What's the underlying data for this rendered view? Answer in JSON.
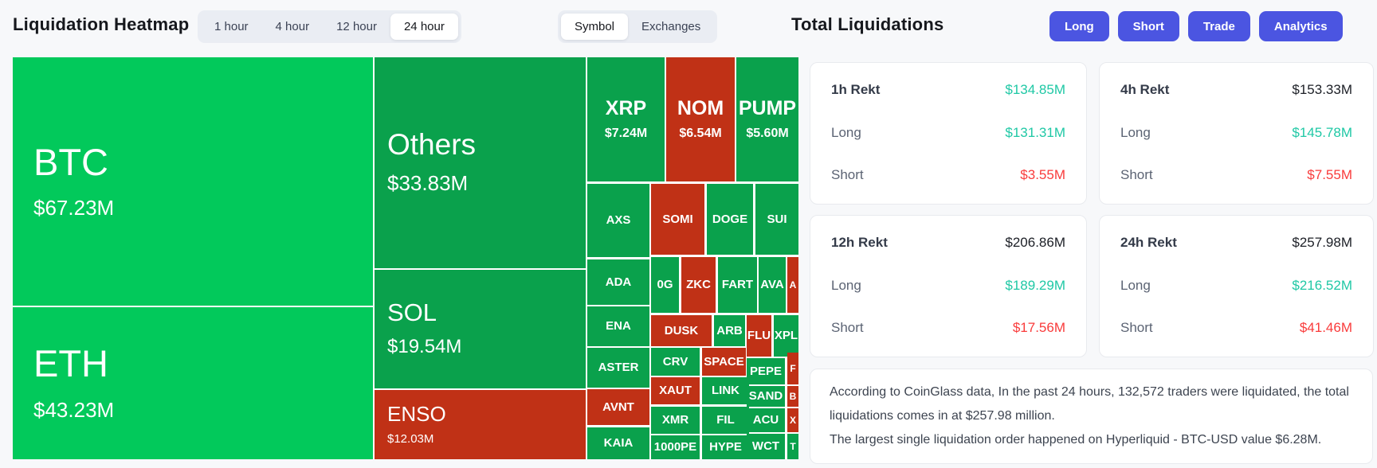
{
  "header": {
    "title": "Liquidation Heatmap",
    "time_filters": {
      "options": [
        "1 hour",
        "4 hour",
        "12 hour",
        "24 hour"
      ],
      "selected": "24 hour"
    },
    "view_toggle": {
      "options": [
        "Symbol",
        "Exchanges"
      ],
      "selected": "Symbol"
    }
  },
  "panel": {
    "title": "Total Liquidations",
    "actions": [
      "Long",
      "Short",
      "Trade",
      "Analytics"
    ],
    "cards": [
      {
        "title": "1h Rekt",
        "total": "$134.85M",
        "total_style": "teal",
        "rows": [
          {
            "label": "Long",
            "value": "$131.31M",
            "style": "teal"
          },
          {
            "label": "Short",
            "value": "$3.55M",
            "style": "red"
          }
        ]
      },
      {
        "title": "4h Rekt",
        "total": "$153.33M",
        "total_style": "dark",
        "rows": [
          {
            "label": "Long",
            "value": "$145.78M",
            "style": "teal"
          },
          {
            "label": "Short",
            "value": "$7.55M",
            "style": "red"
          }
        ]
      },
      {
        "title": "12h Rekt",
        "total": "$206.86M",
        "total_style": "dark",
        "rows": [
          {
            "label": "Long",
            "value": "$189.29M",
            "style": "teal"
          },
          {
            "label": "Short",
            "value": "$17.56M",
            "style": "red"
          }
        ]
      },
      {
        "title": "24h Rekt",
        "total": "$257.98M",
        "total_style": "dark",
        "rows": [
          {
            "label": "Long",
            "value": "$216.52M",
            "style": "teal"
          },
          {
            "label": "Short",
            "value": "$41.46M",
            "style": "red"
          }
        ]
      }
    ],
    "summary": [
      "According to CoinGlass data, In the past 24 hours, 132,572 traders were liquidated, the total liquidations comes in at $257.98 million.",
      "The largest single liquidation order happened on Hyperliquid - BTC-USD value $6.28M."
    ]
  },
  "chart_data": {
    "type": "treemap",
    "title": "Liquidation Heatmap by Symbol, 24 hour",
    "unit": "USD millions",
    "cells": [
      {
        "sym": "BTC",
        "val": "$67.23M",
        "val_m": 67.23,
        "c": "bright",
        "tier": "xl",
        "align": "left",
        "r": [
          0,
          0,
          452,
          312
        ]
      },
      {
        "sym": "ETH",
        "val": "$43.23M",
        "val_m": 43.23,
        "c": "bright",
        "tier": "xl",
        "align": "left",
        "r": [
          0,
          314,
          452,
          191
        ]
      },
      {
        "sym": "Others",
        "val": "$33.83M",
        "val_m": 33.83,
        "c": "green",
        "tier": "lg",
        "align": "left",
        "r": [
          454,
          0,
          265,
          265
        ]
      },
      {
        "sym": "SOL",
        "val": "$19.54M",
        "val_m": 19.54,
        "c": "green",
        "tier": "md",
        "align": "left",
        "r": [
          454,
          267,
          265,
          149
        ]
      },
      {
        "sym": "ENSO",
        "val": "$12.03M",
        "val_m": 12.03,
        "c": "red",
        "tier": "sm",
        "align": "left",
        "r": [
          454,
          418,
          265,
          87
        ]
      },
      {
        "sym": "XRP",
        "val": "$7.24M",
        "val_m": 7.24,
        "c": "green",
        "tier": "row1",
        "align": "center",
        "r": [
          721,
          0,
          97,
          156
        ]
      },
      {
        "sym": "NOM",
        "val": "$6.54M",
        "val_m": 6.54,
        "c": "red",
        "tier": "row1",
        "align": "center",
        "r": [
          820,
          0,
          86,
          156
        ]
      },
      {
        "sym": "PUMP",
        "val": "$5.60M",
        "val_m": 5.6,
        "c": "green",
        "tier": "row1",
        "align": "center",
        "r": [
          908,
          0,
          78,
          156
        ]
      },
      {
        "sym": "AXS",
        "c": "green",
        "tier": "cell",
        "align": "center",
        "r": [
          721,
          159,
          78,
          92
        ]
      },
      {
        "sym": "SOMI",
        "c": "red",
        "tier": "cell",
        "align": "center",
        "r": [
          801,
          159,
          67,
          89
        ]
      },
      {
        "sym": "DOGE",
        "c": "green",
        "tier": "cell",
        "align": "center",
        "r": [
          871,
          159,
          58,
          89
        ]
      },
      {
        "sym": "SUI",
        "c": "green",
        "tier": "cell",
        "align": "center",
        "r": [
          932,
          159,
          54,
          89
        ]
      },
      {
        "sym": "ADA",
        "c": "green",
        "tier": "cell",
        "align": "center",
        "r": [
          721,
          254,
          78,
          57
        ]
      },
      {
        "sym": "0G",
        "c": "green",
        "tier": "cell",
        "align": "center",
        "r": [
          801,
          251,
          35,
          70
        ]
      },
      {
        "sym": "ZKC",
        "c": "red",
        "tier": "cell",
        "align": "center",
        "r": [
          839,
          251,
          43,
          70
        ]
      },
      {
        "sym": "FART",
        "c": "green",
        "tier": "cell",
        "align": "center",
        "r": [
          885,
          251,
          49,
          70
        ]
      },
      {
        "sym": "AVA",
        "c": "green",
        "tier": "cell",
        "align": "center",
        "r": [
          936,
          251,
          34,
          70
        ]
      },
      {
        "sym": "A",
        "c": "red",
        "tier": "tiny",
        "align": "center",
        "r": [
          972,
          251,
          14,
          70
        ]
      },
      {
        "sym": "ENA",
        "c": "green",
        "tier": "cell",
        "align": "center",
        "r": [
          721,
          313,
          78,
          50
        ]
      },
      {
        "sym": "DUSK",
        "c": "red",
        "tier": "cell",
        "align": "center",
        "r": [
          801,
          324,
          76,
          39
        ]
      },
      {
        "sym": "ARB",
        "c": "green",
        "tier": "cell",
        "align": "center",
        "r": [
          880,
          324,
          39,
          39
        ]
      },
      {
        "sym": "FLU",
        "c": "red",
        "tier": "cell",
        "align": "center",
        "r": [
          921,
          324,
          31,
          52
        ]
      },
      {
        "sym": "XPL",
        "c": "green",
        "tier": "cell",
        "align": "center",
        "r": [
          955,
          324,
          31,
          52
        ]
      },
      {
        "sym": "ASTER",
        "c": "green",
        "tier": "cell",
        "align": "center",
        "r": [
          721,
          365,
          78,
          50
        ]
      },
      {
        "sym": "CRV",
        "c": "green",
        "tier": "cell",
        "align": "center",
        "r": [
          801,
          365,
          61,
          35
        ]
      },
      {
        "sym": "SPACE",
        "c": "red",
        "tier": "cell",
        "align": "center",
        "r": [
          865,
          365,
          55,
          35
        ]
      },
      {
        "sym": "XAUT",
        "c": "red",
        "tier": "cell",
        "align": "center",
        "r": [
          801,
          402,
          61,
          34
        ]
      },
      {
        "sym": "LINK",
        "c": "green",
        "tier": "cell",
        "align": "center",
        "r": [
          865,
          402,
          59,
          34
        ]
      },
      {
        "sym": "AVNT",
        "c": "red",
        "tier": "cell",
        "align": "center",
        "r": [
          721,
          417,
          78,
          45
        ]
      },
      {
        "sym": "XMR",
        "c": "green",
        "tier": "cell",
        "align": "center",
        "r": [
          801,
          439,
          61,
          34
        ]
      },
      {
        "sym": "FIL",
        "c": "green",
        "tier": "cell",
        "align": "center",
        "r": [
          865,
          439,
          59,
          34
        ]
      },
      {
        "sym": "KAIA",
        "c": "green",
        "tier": "cell",
        "align": "center",
        "r": [
          721,
          465,
          78,
          40
        ]
      },
      {
        "sym": "1000PE",
        "c": "green",
        "tier": "cell",
        "align": "center",
        "r": [
          801,
          475,
          61,
          30
        ]
      },
      {
        "sym": "HYPE",
        "c": "green",
        "tier": "cell",
        "align": "center",
        "r": [
          865,
          475,
          59,
          30
        ]
      },
      {
        "sym": "PEPE",
        "c": "green",
        "tier": "cell",
        "align": "center",
        "r": [
          921,
          378,
          48,
          33
        ]
      },
      {
        "sym": "F",
        "c": "red",
        "tier": "tiny",
        "align": "center",
        "r": [
          972,
          371,
          14,
          40
        ]
      },
      {
        "sym": "SAND",
        "c": "green",
        "tier": "cell",
        "align": "center",
        "r": [
          921,
          413,
          48,
          26
        ]
      },
      {
        "sym": "B",
        "c": "red",
        "tier": "tiny",
        "align": "center",
        "r": [
          972,
          413,
          14,
          26
        ]
      },
      {
        "sym": "ACU",
        "c": "green",
        "tier": "cell",
        "align": "center",
        "r": [
          921,
          441,
          48,
          30
        ]
      },
      {
        "sym": "X",
        "c": "red",
        "tier": "tiny",
        "align": "center",
        "r": [
          972,
          441,
          14,
          30
        ]
      },
      {
        "sym": "WCT",
        "c": "green",
        "tier": "cell",
        "align": "center",
        "r": [
          921,
          473,
          48,
          32
        ]
      },
      {
        "sym": "T",
        "c": "green",
        "tier": "tiny",
        "align": "center",
        "r": [
          972,
          473,
          14,
          32
        ]
      }
    ]
  },
  "colors": {
    "green_bright": "#02c95b",
    "green": "#0aa14c",
    "red_cell": "#c03116",
    "teal_value": "#1fc8a5",
    "red_value": "#f93b3b",
    "accent_button": "#4b55e1",
    "page_bg": "#f7f8fa"
  }
}
